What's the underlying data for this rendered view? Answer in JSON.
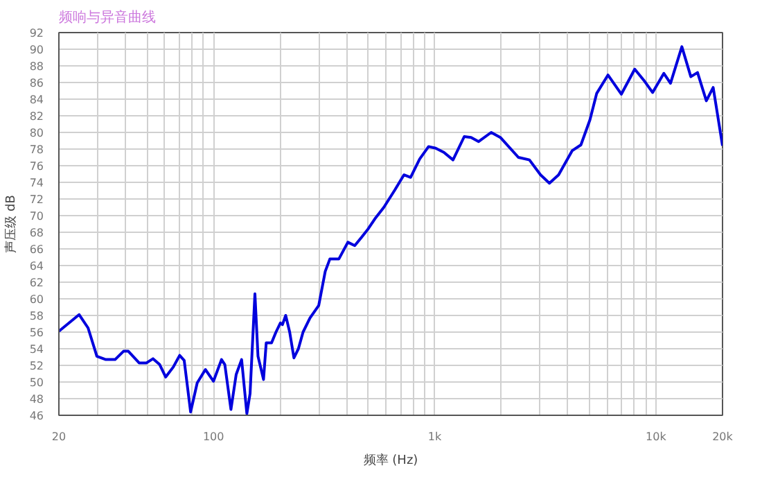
{
  "chart_data": {
    "type": "line",
    "title": "频响与异音曲线",
    "xlabel": "频率 (Hz)",
    "ylabel": "声压级 dB",
    "log": "x",
    "grid": true,
    "marker": "none",
    "line_style": "solid",
    "xlim": [
      20,
      20000
    ],
    "ylim": [
      46,
      92
    ],
    "xticks": [
      20,
      {
        "value": 30,
        "label": null
      },
      {
        "value": 40,
        "label": null
      },
      {
        "value": 50,
        "label": null
      },
      {
        "value": 60,
        "label": null
      },
      {
        "value": 70,
        "label": null
      },
      {
        "value": 80,
        "label": null
      },
      {
        "value": 90,
        "label": null
      },
      100,
      {
        "value": 200,
        "label": null
      },
      {
        "value": 300,
        "label": null
      },
      {
        "value": 400,
        "label": null
      },
      {
        "value": 500,
        "label": null
      },
      {
        "value": 600,
        "label": null
      },
      {
        "value": 700,
        "label": null
      },
      {
        "value": 800,
        "label": null
      },
      {
        "value": 900,
        "label": null
      },
      {
        "value": 1000,
        "label": "1k"
      },
      {
        "value": 2000,
        "label": null
      },
      {
        "value": 3000,
        "label": null
      },
      {
        "value": 4000,
        "label": null
      },
      {
        "value": 5000,
        "label": null
      },
      {
        "value": 6000,
        "label": null
      },
      {
        "value": 7000,
        "label": null
      },
      {
        "value": 8000,
        "label": null
      },
      {
        "value": 9000,
        "label": null
      },
      {
        "value": 10000,
        "label": "10k"
      },
      {
        "value": 20000,
        "label": "20k"
      }
    ],
    "yticks": [
      46,
      48,
      50,
      52,
      54,
      56,
      58,
      60,
      62,
      64,
      66,
      68,
      70,
      72,
      74,
      76,
      78,
      80,
      82,
      84,
      86,
      88,
      90,
      92
    ],
    "series": [
      {
        "color": "#0000dd",
        "x": [
          20,
          24.7,
          27.1,
          29.7,
          32.6,
          35.9,
          39.2,
          41.2,
          46.1,
          49.8,
          53.3,
          57.1,
          60.8,
          65.8,
          70.3,
          73.7,
          78.8,
          84.4,
          91.9,
          100,
          108.7,
          112.5,
          119.9,
          126.6,
          134,
          141.5,
          146.3,
          153.9,
          158.9,
          168.3,
          173.1,
          183,
          191.6,
          200.6,
          205,
          212,
          221,
          231,
          242,
          254,
          273,
          299,
          320,
          336,
          369,
          405,
          435,
          467,
          500,
          536,
          589,
          661,
          726,
          778,
          855,
          938,
          1010,
          1100,
          1210,
          1360,
          1460,
          1580,
          1800,
          1980,
          2390,
          2680,
          3010,
          3300,
          3630,
          4180,
          4580,
          5030,
          5400,
          6070,
          6980,
          8020,
          8800,
          9660,
          10860,
          11640,
          13100,
          14380,
          15420,
          16900,
          18150,
          20000
        ],
        "values": [
          56.1,
          58.1,
          56.5,
          53.1,
          52.7,
          52.7,
          53.7,
          53.7,
          52.3,
          52.3,
          52.8,
          52.1,
          50.6,
          51.8,
          53.2,
          52.6,
          46.4,
          49.9,
          51.5,
          50.1,
          52.7,
          52.1,
          46.7,
          50.9,
          52.7,
          46.2,
          48.6,
          60.6,
          53.1,
          50.3,
          54.7,
          54.7,
          56.0,
          57.1,
          56.9,
          58.0,
          56.0,
          52.9,
          54.0,
          56.0,
          57.7,
          59.2,
          63.3,
          64.8,
          64.8,
          66.8,
          66.4,
          67.4,
          68.4,
          69.6,
          71.0,
          73.1,
          74.9,
          74.6,
          76.8,
          78.3,
          78.1,
          77.6,
          76.7,
          79.5,
          79.4,
          78.9,
          80.0,
          79.4,
          77.0,
          76.7,
          74.9,
          73.9,
          74.9,
          77.8,
          78.5,
          81.5,
          84.7,
          86.9,
          84.6,
          87.6,
          86.3,
          84.8,
          87.1,
          85.9,
          90.3,
          86.7,
          87.2,
          83.8,
          85.4,
          78.4
        ]
      }
    ]
  }
}
